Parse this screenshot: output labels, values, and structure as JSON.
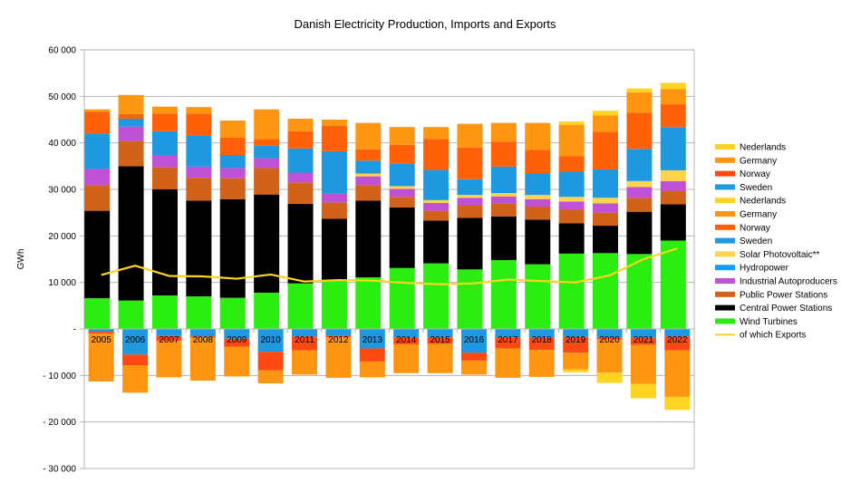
{
  "chart_data": {
    "type": "bar",
    "stacked": true,
    "title": "Danish Electricity Production, Imports and Exports",
    "xlabel": "",
    "ylabel": "GWh",
    "ylim": [
      -30000,
      60000
    ],
    "yticks": [
      60000,
      50000,
      40000,
      30000,
      20000,
      10000,
      0,
      -10000,
      -20000,
      -30000
    ],
    "ytick_labels": [
      "60 000",
      "50 000",
      "40 000",
      "30 000",
      "20 000",
      "10 000",
      "-",
      "- 10 000",
      "- 20 000",
      "- 30 000"
    ],
    "grid": true,
    "legend_position": "right",
    "categories": [
      "2005",
      "2006",
      "2007",
      "2008",
      "2009",
      "2010",
      "2011",
      "2012",
      "2013",
      "2014",
      "2015",
      "2016",
      "2017",
      "2018",
      "2019",
      "2020",
      "2021",
      "2022"
    ],
    "positive_series": [
      {
        "name": "Wind Turbines",
        "color": "#2ced10",
        "values": [
          6600,
          6100,
          7200,
          7000,
          6700,
          7800,
          9800,
          10300,
          11100,
          13100,
          14100,
          12800,
          14800,
          13900,
          16200,
          16300,
          16100,
          19000
        ]
      },
      {
        "name": "Central Power Stations",
        "color": "#000000",
        "values": [
          18800,
          28900,
          22800,
          20600,
          21200,
          21100,
          17100,
          13400,
          16500,
          13000,
          9200,
          11100,
          9400,
          9600,
          6500,
          5900,
          9100,
          7800
        ]
      },
      {
        "name": "Public Power Stations",
        "color": "#d26119",
        "values": [
          5500,
          5400,
          4800,
          4900,
          4500,
          5700,
          4600,
          3500,
          3300,
          2300,
          2100,
          2700,
          2700,
          2800,
          3000,
          2800,
          3000,
          2900
        ]
      },
      {
        "name": "Industrial Autoproducers",
        "color": "#bf52d4",
        "values": [
          3500,
          3100,
          2600,
          2400,
          2200,
          2100,
          2100,
          1900,
          1900,
          1700,
          1700,
          1600,
          1600,
          1600,
          1700,
          2000,
          2300,
          2100
        ]
      },
      {
        "name": "Hydropower",
        "color": "#139ef7",
        "values": [
          0,
          0,
          0,
          0,
          0,
          0,
          0,
          0,
          0,
          0,
          0,
          0,
          0,
          0,
          0,
          0,
          0,
          0
        ]
      },
      {
        "name": "Solar Photovoltaic**",
        "color": "#ffd34d",
        "values": [
          0,
          0,
          0,
          0,
          0,
          0,
          0,
          0,
          600,
          600,
          600,
          600,
          700,
          900,
          1000,
          1200,
          1300,
          2300
        ]
      },
      {
        "name": "Sweden",
        "color": "#1e98df",
        "values": [
          7600,
          1700,
          5100,
          6600,
          2800,
          2700,
          5200,
          9100,
          2800,
          4800,
          6500,
          3400,
          5700,
          4700,
          5400,
          6100,
          6900,
          9300
        ]
      },
      {
        "name": "Norway",
        "color": "#ff6008",
        "values": [
          4700,
          1000,
          3800,
          4800,
          3700,
          1400,
          3700,
          5500,
          2400,
          4100,
          6600,
          6800,
          5400,
          5000,
          3300,
          8100,
          7800,
          4900
        ]
      },
      {
        "name": "Germany",
        "color": "#ff9612",
        "values": [
          500,
          4100,
          1500,
          1400,
          3700,
          6400,
          2700,
          1300,
          5700,
          3800,
          2600,
          5100,
          4000,
          5800,
          6800,
          3500,
          4400,
          3300
        ]
      },
      {
        "name": "Nederlands",
        "color": "#ffd321",
        "values": [
          0,
          0,
          0,
          0,
          0,
          0,
          0,
          0,
          0,
          0,
          0,
          0,
          0,
          0,
          700,
          1000,
          800,
          1300
        ]
      }
    ],
    "negative_series": [
      {
        "name": "Sweden",
        "color": "#1e98df",
        "values": [
          -600,
          -5500,
          -1500,
          -1600,
          -2100,
          -4900,
          -1600,
          -1400,
          -4200,
          -1800,
          -1800,
          -5100,
          -1800,
          -1900,
          -1700,
          -1800,
          -1900,
          -1600
        ]
      },
      {
        "name": "Norway",
        "color": "#ff4813",
        "values": [
          -400,
          -2300,
          -1100,
          -300,
          -1700,
          -4000,
          -3000,
          -400,
          -2800,
          -1500,
          -1400,
          -1700,
          -2400,
          -2600,
          -3400,
          -500,
          -1500,
          -3000
        ]
      },
      {
        "name": "Germany",
        "color": "#ff9612",
        "values": [
          -10300,
          -5900,
          -7800,
          -9200,
          -6400,
          -2800,
          -5200,
          -8700,
          -3400,
          -6200,
          -6300,
          -3000,
          -6300,
          -5800,
          -3600,
          -7100,
          -8400,
          -10000
        ]
      },
      {
        "name": "Nederlands",
        "color": "#ffd321",
        "values": [
          0,
          0,
          0,
          0,
          0,
          0,
          0,
          0,
          0,
          0,
          0,
          0,
          0,
          0,
          -600,
          -2200,
          -3100,
          -2800
        ]
      }
    ],
    "line_series": {
      "name": "of which Exports",
      "color": "#ffd321",
      "values": [
        11600,
        13600,
        11400,
        11300,
        10800,
        11700,
        10200,
        10500,
        10400,
        9900,
        9600,
        9800,
        10600,
        10300,
        10000,
        11500,
        15000,
        17300
      ]
    },
    "legend": [
      "Nederlands",
      "Germany",
      "Norway",
      "Sweden",
      "Nederlands",
      "Germany",
      "Norway",
      "Sweden",
      "Solar Photovoltaic**",
      "Hydropower",
      "Industrial Autoproducers",
      "Public Power Stations",
      "Central Power Stations",
      "Wind Turbines",
      "of which Exports"
    ],
    "legend_colors": [
      "#ffd321",
      "#ff9612",
      "#ff4813",
      "#1e98df",
      "#ffd321",
      "#ff9612",
      "#ff6008",
      "#1e98df",
      "#ffd34d",
      "#139ef7",
      "#bf52d4",
      "#d26119",
      "#000000",
      "#2ced10",
      "#ffd321"
    ]
  }
}
